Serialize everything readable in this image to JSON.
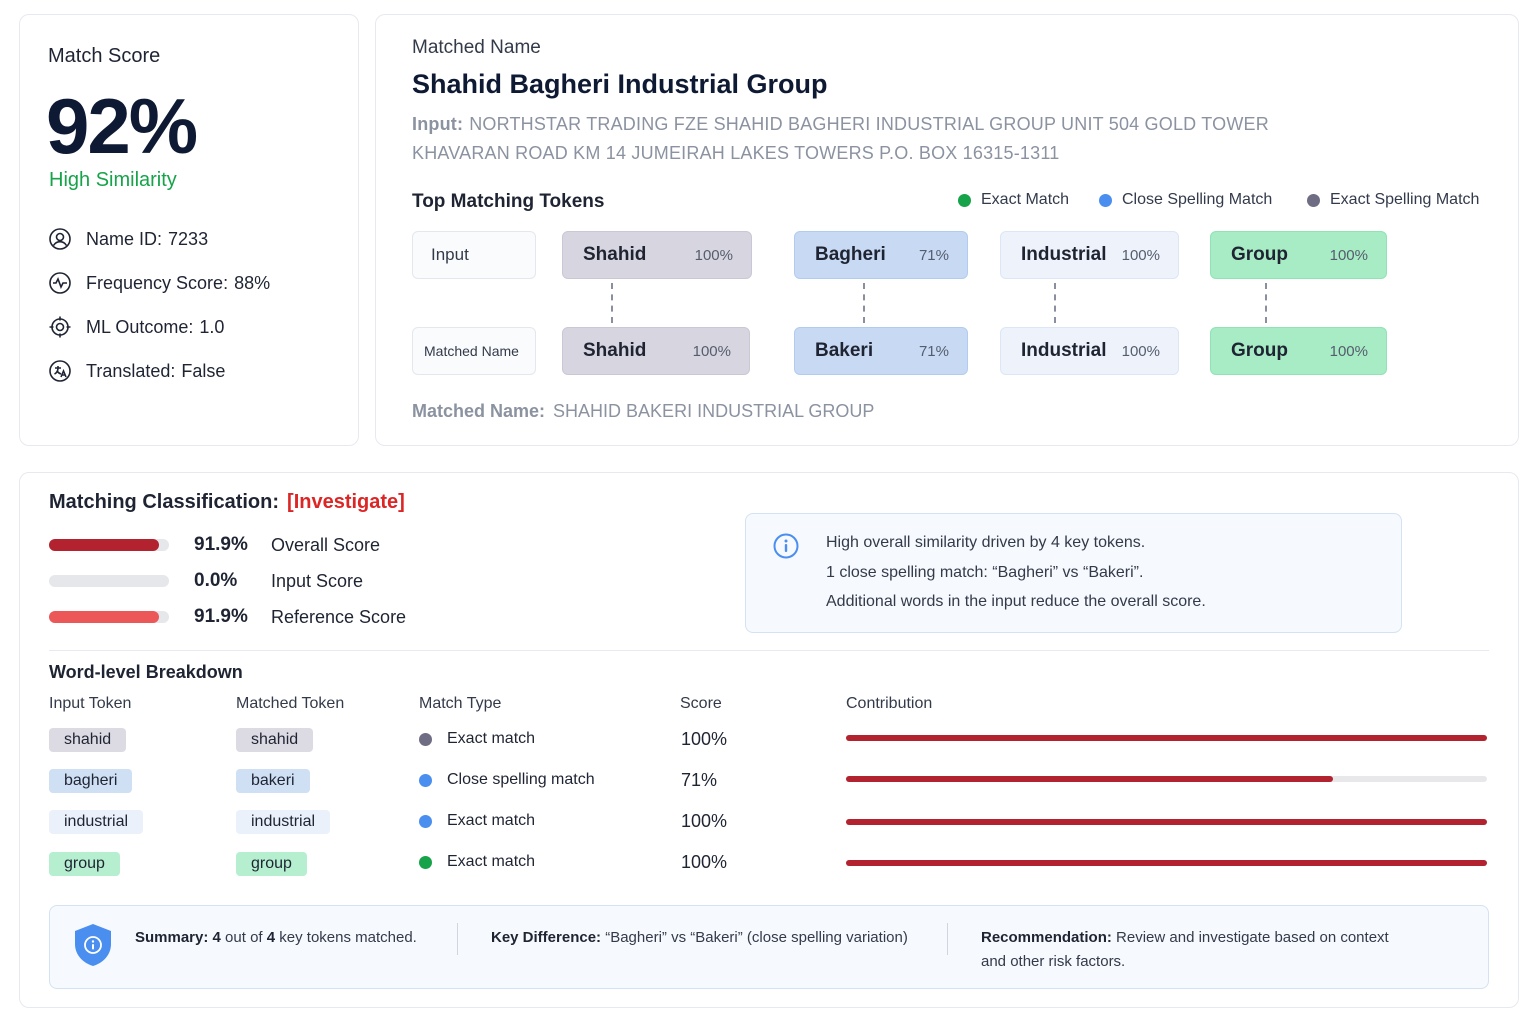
{
  "score_card": {
    "label": "Match Score",
    "value": "92%",
    "similarity": "High Similarity",
    "meta": [
      {
        "icon": "user-icon",
        "label": "Name ID:",
        "value": "7233"
      },
      {
        "icon": "pulse-icon",
        "label": "Frequency Score:",
        "value": "88%"
      },
      {
        "icon": "target-icon",
        "label": "ML Outcome:",
        "value": "1.0"
      },
      {
        "icon": "translate-icon",
        "label": "Translated:",
        "value": "False"
      }
    ]
  },
  "name_card": {
    "label": "Matched Name",
    "title": "Shahid Bagheri Industrial Group",
    "input_label": "Input:",
    "input_text_1": "NORTHSTAR TRADING FZE SHAHID BAGHERI INDUSTRIAL GROUP UNIT 504 GOLD TOWER",
    "input_text_2": "KHAVARAN ROAD KM 14 JUMEIRAH LAKES TOWERS P.O. BOX 16315-1311",
    "tokens_title": "Top Matching Tokens",
    "legend": [
      {
        "label": "Exact Match",
        "color": "#16a34a"
      },
      {
        "label": "Close Spelling Match",
        "color": "#4a8ef0"
      },
      {
        "label": "Exact Spelling Match",
        "color": "#6f6d84"
      }
    ],
    "row_labels": {
      "input": "Input",
      "matched": "Matched Name"
    },
    "input_tokens": [
      {
        "word": "Shahid",
        "pct": "100%"
      },
      {
        "word": "Bagheri",
        "pct": "71%"
      },
      {
        "word": "Industrial",
        "pct": "100%"
      },
      {
        "word": "Group",
        "pct": "100%"
      }
    ],
    "matched_tokens": [
      {
        "word": "Shahid",
        "pct": "100%"
      },
      {
        "word": "Bakeri",
        "pct": "71%"
      },
      {
        "word": "Industrial",
        "pct": "100%"
      },
      {
        "word": "Group",
        "pct": "100%"
      }
    ],
    "matched_name_label": "Matched Name:",
    "matched_name_value": "SHAHID BAKERI INDUSTRIAL GROUP"
  },
  "classification": {
    "title": "Matching Classification:",
    "status": "[Investigate]",
    "scores": [
      {
        "value": "91.9%",
        "label": "Overall Score",
        "fill": 0.919,
        "color": "#b3232f"
      },
      {
        "value": "0.0%",
        "label": "Input Score",
        "fill": 0.0,
        "color": "#b3232f"
      },
      {
        "value": "91.9%",
        "label": "Reference Score",
        "fill": 0.919,
        "color": "#ec5757"
      }
    ],
    "info": [
      "High overall similarity driven by 4 key tokens.",
      "1 close spelling match: “Bagheri” vs “Bakeri”.",
      "Additional words in the input reduce the overall score."
    ]
  },
  "breakdown": {
    "title": "Word-level Breakdown",
    "headers": [
      "Input Token",
      "Matched Token",
      "Match Type",
      "Score",
      "Contribution"
    ],
    "rows": [
      {
        "input": "shahid",
        "matched": "shahid",
        "type": "Exact match",
        "dot": "#6f6d84",
        "score": "100%",
        "contribution": 1.0
      },
      {
        "input": "bagheri",
        "matched": "bakeri",
        "type": "Close spelling match",
        "dot": "#4a8ef0",
        "score": "71%",
        "contribution": 0.76
      },
      {
        "input": "industrial",
        "matched": "industrial",
        "type": "Exact match",
        "dot": "#4a8ef0",
        "score": "100%",
        "contribution": 1.0
      },
      {
        "input": "group",
        "matched": "group",
        "type": "Exact match",
        "dot": "#16a34a",
        "score": "100%",
        "contribution": 1.0
      }
    ]
  },
  "summary": {
    "summary_label": "Summary:",
    "summary_n1": "4",
    "summary_mid": "out of",
    "summary_n2": "4",
    "summary_tail": "key tokens matched.",
    "diff_label": "Key Difference:",
    "diff_text": "“Bagheri” vs “Bakeri” (close spelling variation)",
    "rec_label": "Recommendation:",
    "rec_text_1": "Review and investigate based on context",
    "rec_text_2": "and other risk factors."
  }
}
